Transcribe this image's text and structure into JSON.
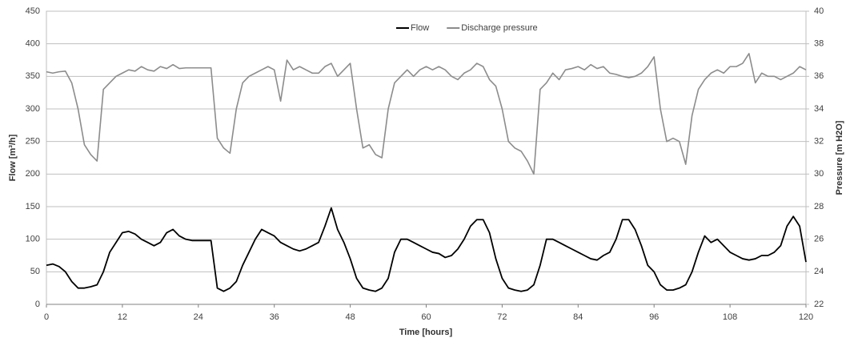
{
  "chart_data": {
    "type": "line",
    "x_label": "Time [hours]",
    "y_label": "Flow [m³/h]",
    "y2_label": "Pressure [m H2O]",
    "legend": "top-center",
    "grid": true,
    "xlim": [
      0,
      120
    ],
    "xticks": [
      0,
      12,
      24,
      36,
      48,
      60,
      72,
      84,
      96,
      108,
      120
    ],
    "ylim": [
      0,
      450
    ],
    "yticks": [
      0,
      50,
      100,
      150,
      200,
      250,
      300,
      350,
      400,
      450
    ],
    "y2lim": [
      22,
      40
    ],
    "y2ticks": [
      22,
      24,
      26,
      28,
      30,
      32,
      34,
      36,
      38,
      40
    ],
    "x": [
      0,
      1,
      2,
      3,
      4,
      5,
      6,
      7,
      8,
      9,
      10,
      11,
      12,
      13,
      14,
      15,
      16,
      17,
      18,
      19,
      20,
      21,
      22,
      23,
      24,
      25,
      26,
      27,
      28,
      29,
      30,
      31,
      32,
      33,
      34,
      35,
      36,
      37,
      38,
      39,
      40,
      41,
      42,
      43,
      44,
      45,
      46,
      47,
      48,
      49,
      50,
      51,
      52,
      53,
      54,
      55,
      56,
      57,
      58,
      59,
      60,
      61,
      62,
      63,
      64,
      65,
      66,
      67,
      68,
      69,
      70,
      71,
      72,
      73,
      74,
      75,
      76,
      77,
      78,
      79,
      80,
      81,
      82,
      83,
      84,
      85,
      86,
      87,
      88,
      89,
      90,
      91,
      92,
      93,
      94,
      95,
      96,
      97,
      98,
      99,
      100,
      101,
      102,
      103,
      104,
      105,
      106,
      107,
      108,
      109,
      110,
      111,
      112,
      113,
      114,
      115,
      116,
      117,
      118,
      119,
      120
    ],
    "series": [
      {
        "name": "Flow",
        "color": "#000000",
        "values": [
          60,
          62,
          58,
          50,
          35,
          25,
          25,
          27,
          30,
          50,
          80,
          95,
          110,
          112,
          108,
          100,
          95,
          90,
          95,
          110,
          115,
          105,
          100,
          98,
          98,
          98,
          98,
          25,
          20,
          25,
          35,
          60,
          80,
          100,
          115,
          110,
          105,
          95,
          90,
          85,
          82,
          85,
          90,
          95,
          120,
          148,
          115,
          95,
          70,
          40,
          25,
          22,
          20,
          25,
          40,
          80,
          100,
          100,
          95,
          90,
          85,
          80,
          78,
          72,
          75,
          85,
          100,
          120,
          130,
          130,
          110,
          70,
          40,
          25,
          22,
          20,
          22,
          30,
          60,
          100,
          100,
          95,
          90,
          85,
          80,
          75,
          70,
          68,
          75,
          80,
          100,
          130,
          130,
          115,
          90,
          60,
          50,
          30,
          22,
          22,
          25,
          30,
          50,
          80,
          105,
          95,
          100,
          90,
          80,
          75,
          70,
          68,
          70,
          75,
          75,
          80,
          90,
          120,
          135,
          120,
          65
        ]
      },
      {
        "name": "Discharge pressure",
        "color": "#8c8c8c",
        "axis": "y2",
        "values": [
          36.28,
          36.2,
          36.28,
          36.32,
          35.6,
          34,
          31.8,
          31.2,
          30.8,
          35.2,
          35.6,
          36,
          36.2,
          36.4,
          36.32,
          36.6,
          36.4,
          36.32,
          36.6,
          36.48,
          36.72,
          36.48,
          36.52,
          36.52,
          36.52,
          36.52,
          36.52,
          32.2,
          31.6,
          31.28,
          34,
          35.6,
          36,
          36.2,
          36.4,
          36.6,
          36.4,
          34.48,
          37,
          36.4,
          36.6,
          36.4,
          36.2,
          36.2,
          36.6,
          36.8,
          36,
          36.4,
          36.8,
          34,
          31.6,
          31.8,
          31.2,
          31,
          34,
          35.6,
          36,
          36.4,
          36,
          36.4,
          36.6,
          36.4,
          36.6,
          36.4,
          36,
          35.8,
          36.2,
          36.4,
          36.8,
          36.6,
          35.8,
          35.4,
          34,
          32,
          31.6,
          31.4,
          30.8,
          30,
          35.2,
          35.6,
          36.2,
          35.8,
          36.4,
          36.48,
          36.6,
          36.4,
          36.72,
          36.48,
          36.6,
          36.2,
          36.12,
          36,
          35.92,
          36,
          36.2,
          36.6,
          37.2,
          34,
          32,
          32.2,
          32,
          30.6,
          33.6,
          35.2,
          35.8,
          36.2,
          36.4,
          36.2,
          36.6,
          36.6,
          36.8,
          37.4,
          35.6,
          36.2,
          36,
          36,
          35.8,
          36,
          36.2,
          36.6,
          36.4
        ]
      }
    ]
  }
}
